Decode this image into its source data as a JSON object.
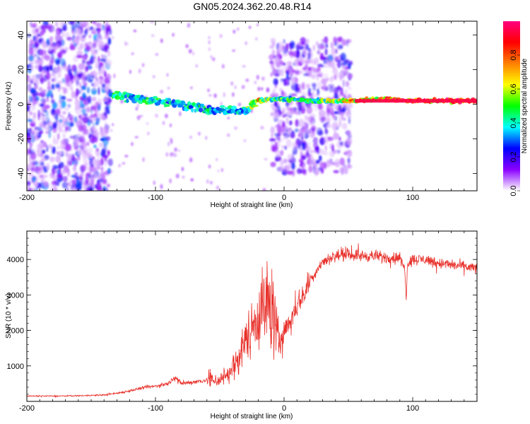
{
  "title": "GN05.2024.362.20.48.R14",
  "chart_data": [
    {
      "type": "heatmap",
      "xlabel": "Height of straight line (km)",
      "ylabel": "Frequency (Hz)",
      "xlim": [
        -200,
        150
      ],
      "ylim": [
        -50,
        48
      ],
      "xticks": [
        "-200",
        "-100",
        "0",
        "100"
      ],
      "yticks": [
        "40",
        "20",
        "0",
        "-20",
        "-40"
      ],
      "colorbar": {
        "label": "Normalized spectral amplitude",
        "range": [
          0,
          1
        ],
        "ticks": [
          "0.0",
          "0.2",
          "0.4",
          "0.6",
          "0.8"
        ],
        "colors": [
          "#ffffff",
          "#8a00ff",
          "#0000ff",
          "#00ffff",
          "#00ff00",
          "#ffff00",
          "#ff8000",
          "#ff0000",
          "#ff0080"
        ]
      },
      "ridge": {
        "x": [
          -135,
          -120,
          -100,
          -80,
          -60,
          -40,
          -30,
          -20,
          -10,
          0,
          20,
          50,
          80,
          100,
          150
        ],
        "freq": [
          6,
          4,
          2,
          0,
          -3,
          -4,
          -3,
          2,
          3,
          3,
          2,
          2,
          3,
          2,
          2
        ],
        "amplitude": [
          0.5,
          0.45,
          0.45,
          0.45,
          0.45,
          0.4,
          0.45,
          0.75,
          0.5,
          0.55,
          0.5,
          0.75,
          0.85,
          0.95,
          0.95
        ]
      },
      "noise_regions": [
        {
          "x": [
            -200,
            -135
          ],
          "freq": [
            -50,
            48
          ],
          "amplitude": 0.3
        },
        {
          "x": [
            -10,
            52
          ],
          "freq": [
            -40,
            38
          ],
          "amplitude": 0.25
        }
      ]
    },
    {
      "type": "line",
      "xlabel": "Height of straight line (km)",
      "ylabel": "SNR (10 * v/v)",
      "xlim": [
        -200,
        150
      ],
      "ylim": [
        0,
        4800
      ],
      "xticks": [
        "-200",
        "-100",
        "0",
        "100"
      ],
      "yticks": [
        "1000",
        "2000",
        "3000",
        "4000"
      ],
      "color": "#e8302a",
      "series": [
        {
          "x": [
            -200,
            -180,
            -160,
            -140,
            -130,
            -120,
            -110,
            -100,
            -90,
            -85,
            -80,
            -70,
            -60,
            -50,
            -40,
            -35,
            -30,
            -25,
            -20,
            -15,
            -10,
            -5,
            0,
            5,
            10,
            15,
            20,
            30,
            40,
            50,
            60,
            70,
            80,
            90,
            94,
            95,
            96,
            100,
            110,
            120,
            130,
            140,
            150
          ],
          "y": [
            150,
            150,
            160,
            180,
            230,
            300,
            380,
            430,
            500,
            700,
            500,
            550,
            600,
            600,
            900,
            1300,
            1700,
            2100,
            2500,
            2700,
            2750,
            1700,
            2000,
            2300,
            2700,
            3000,
            3400,
            3950,
            4100,
            4150,
            4100,
            4100,
            4050,
            4050,
            3700,
            2900,
            3900,
            4000,
            4000,
            3900,
            3850,
            3800,
            3750
          ]
        }
      ]
    }
  ]
}
